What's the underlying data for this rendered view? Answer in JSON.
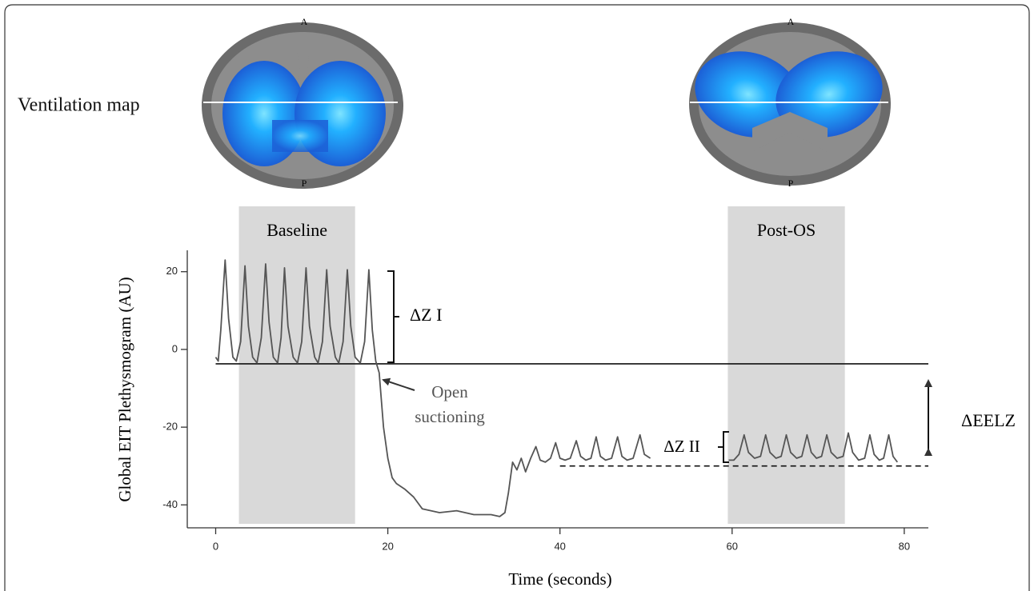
{
  "ventilation_maps": {
    "label": "Ventilation map",
    "maps": [
      {
        "anterior": "A",
        "posterior": "P"
      },
      {
        "anterior": "A",
        "posterior": "P"
      }
    ]
  },
  "chart_data": {
    "type": "line",
    "xlabel": "Time (seconds)",
    "ylabel": "Global EIT Plethysmogram (AU)",
    "xlim": [
      -3.3,
      82.8
    ],
    "ylim": [
      -45.9,
      25.5
    ],
    "xticks": [
      0,
      20,
      40,
      60,
      80
    ],
    "yticks": [
      -40,
      -20,
      0,
      20
    ],
    "color": "#555555",
    "x": [
      0,
      0.3,
      0.6,
      1.1,
      1.5,
      2.0,
      2.4,
      2.9,
      3.4,
      3.8,
      4.3,
      4.8,
      5.3,
      5.8,
      6.2,
      6.7,
      7.2,
      7.6,
      8.0,
      8.4,
      9.0,
      9.5,
      10.0,
      10.5,
      10.9,
      11.5,
      11.9,
      12.4,
      12.9,
      13.3,
      13.9,
      14.3,
      14.8,
      15.3,
      15.7,
      16.2,
      16.8,
      17.3,
      17.8,
      18.2,
      18.6,
      19.0,
      19.5,
      20.0,
      20.5,
      21.0,
      22.0,
      23.0,
      24.0,
      25.0,
      26.0,
      28.0,
      30.0,
      32.0,
      33.0,
      33.6,
      34.0,
      34.5,
      35.0,
      35.5,
      36.0,
      36.6,
      37.2,
      37.7,
      38.3,
      38.9,
      39.5,
      40.0,
      40.6,
      41.2,
      41.9,
      42.4,
      43.0,
      43.6,
      44.2,
      44.7,
      45.3,
      46.0,
      46.7,
      47.2,
      47.8,
      48.5,
      49.3,
      49.8,
      50.5,
      null,
      59.6,
      60.2,
      60.8,
      61.4,
      61.9,
      62.6,
      63.3,
      63.9,
      64.4,
      65.1,
      65.7,
      66.3,
      66.8,
      67.5,
      68.1,
      68.7,
      69.2,
      69.8,
      70.4,
      71.0,
      71.5,
      72.2,
      72.9,
      73.5,
      74.0,
      74.7,
      75.4,
      76.0,
      76.5,
      77.1,
      77.6,
      78.2,
      78.7,
      79.2
    ],
    "values": [
      -2,
      -3,
      5,
      23,
      8,
      -2,
      -3,
      2,
      21.5,
      6,
      -2,
      -3.5,
      3,
      22,
      7,
      -2,
      -3.5,
      3,
      21,
      6,
      -2,
      -3.5,
      2,
      21,
      6,
      -2,
      -3.5,
      2,
      20.5,
      6,
      -2,
      -3.5,
      2,
      20.5,
      6,
      -2,
      -3.5,
      2,
      20.5,
      5,
      -3,
      -6,
      -20,
      -28,
      -33,
      -34.5,
      -36,
      -38,
      -41,
      -41.5,
      -42,
      -41.5,
      -42.5,
      -42.5,
      -43,
      -42,
      -37,
      -29,
      -31,
      -28,
      -31.5,
      -28,
      -25,
      -28.5,
      -29,
      -28,
      -24,
      -28,
      -28.5,
      -28,
      -23.5,
      -27.5,
      -28.5,
      -28,
      -22.5,
      -27.5,
      -28.5,
      -28,
      -22.5,
      -27.5,
      -28.5,
      -28,
      -22,
      -27,
      -28,
      null,
      -28.5,
      -28.5,
      -27,
      -22,
      -26.5,
      -28,
      -27.5,
      -22,
      -26.5,
      -28,
      -27.5,
      -22,
      -26.5,
      -28,
      -27.5,
      -22,
      -26.5,
      -28,
      -27.5,
      -22,
      -26.5,
      -28,
      -27.5,
      -21.5,
      -26.5,
      -28.5,
      -28,
      -22,
      -27,
      -28.5,
      -28,
      -22,
      -27.5,
      -29
    ],
    "regions": [
      {
        "label": "Baseline",
        "x": [
          2.7,
          16.2
        ]
      },
      {
        "label": "Post-OS",
        "x": [
          59.5,
          73.1
        ]
      }
    ],
    "reference_lines": [
      {
        "y": -3.7,
        "from": 0,
        "style": "solid"
      },
      {
        "y": -30,
        "from": 40,
        "style": "dashed"
      }
    ],
    "annotations": {
      "delta_z1": "ΔZ I",
      "delta_z2": "ΔZ II",
      "delta_eelz": "ΔEELZ",
      "open_suctioning": [
        "Open",
        "suctioning"
      ]
    }
  }
}
